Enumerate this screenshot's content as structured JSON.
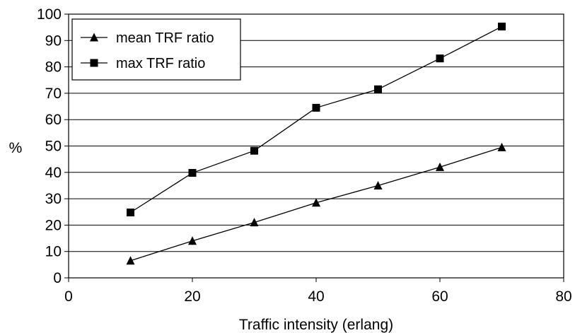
{
  "chart_data": {
    "type": "line",
    "title": "",
    "xlabel": "Traffic intensity (erlang)",
    "ylabel": "%",
    "xlim": [
      0,
      80
    ],
    "ylim": [
      0,
      100
    ],
    "xticks": [
      0,
      20,
      40,
      60,
      80
    ],
    "yticks": [
      0,
      10,
      20,
      30,
      40,
      50,
      60,
      70,
      80,
      90,
      100
    ],
    "grid": "horizontal",
    "legend_position": "top-left",
    "x": [
      10,
      20,
      30,
      40,
      50,
      60,
      70
    ],
    "series": [
      {
        "name": "mean TRF ratio",
        "marker": "triangle",
        "values": [
          6.5,
          14.0,
          21.0,
          28.5,
          35.0,
          42.0,
          49.5
        ]
      },
      {
        "name": "max TRF ratio",
        "marker": "square",
        "values": [
          24.8,
          39.8,
          48.2,
          64.5,
          71.5,
          83.2,
          95.3
        ]
      }
    ]
  }
}
